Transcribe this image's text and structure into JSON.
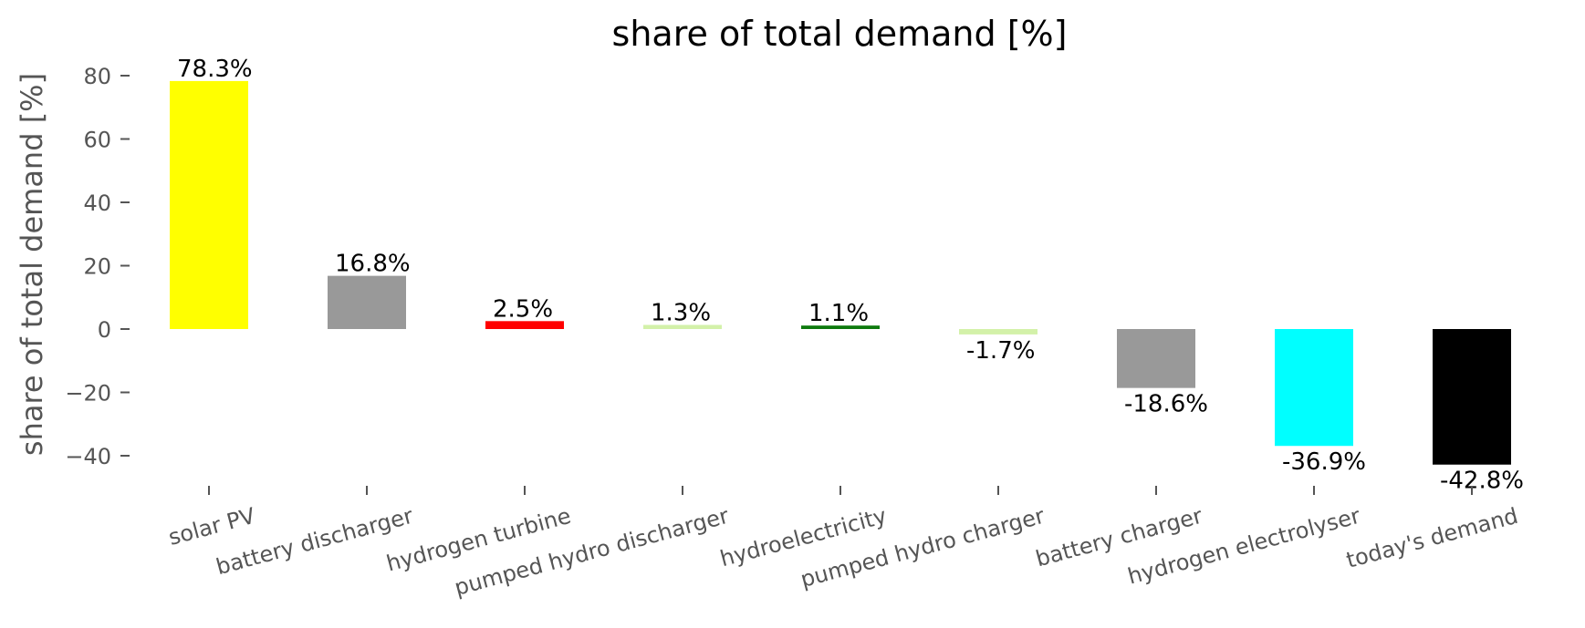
{
  "chart_data": {
    "type": "bar",
    "title": "share of total demand [%]",
    "xlabel": "",
    "ylabel": "share of total demand [%]",
    "ylim": [
      -50,
      90
    ],
    "yticks": [
      80,
      60,
      40,
      20,
      0,
      -20,
      -40
    ],
    "ytick_labels": [
      "80",
      "60",
      "40",
      "20",
      "0",
      "−20",
      "−40"
    ],
    "grid": false,
    "categories": [
      "solar PV",
      "battery discharger",
      "hydrogen turbine",
      "pumped hydro discharger",
      "hydroelectricity",
      "pumped hydro charger",
      "battery charger",
      "hydrogen electrolyser",
      "today's demand"
    ],
    "values": [
      78.3,
      16.8,
      2.5,
      1.3,
      1.1,
      -1.7,
      -18.6,
      -36.9,
      -42.8
    ],
    "data_labels": [
      "78.3%",
      "16.8%",
      "2.5%",
      "1.3%",
      "1.1%",
      "-1.7%",
      "-18.6%",
      "-36.9%",
      "-42.8%"
    ],
    "colors": [
      "#ffff00",
      "#999999",
      "#ff0000",
      "#d3f1a9",
      "#0e7a0e",
      "#d3f1a9",
      "#999999",
      "#00ffff",
      "#000000"
    ]
  }
}
